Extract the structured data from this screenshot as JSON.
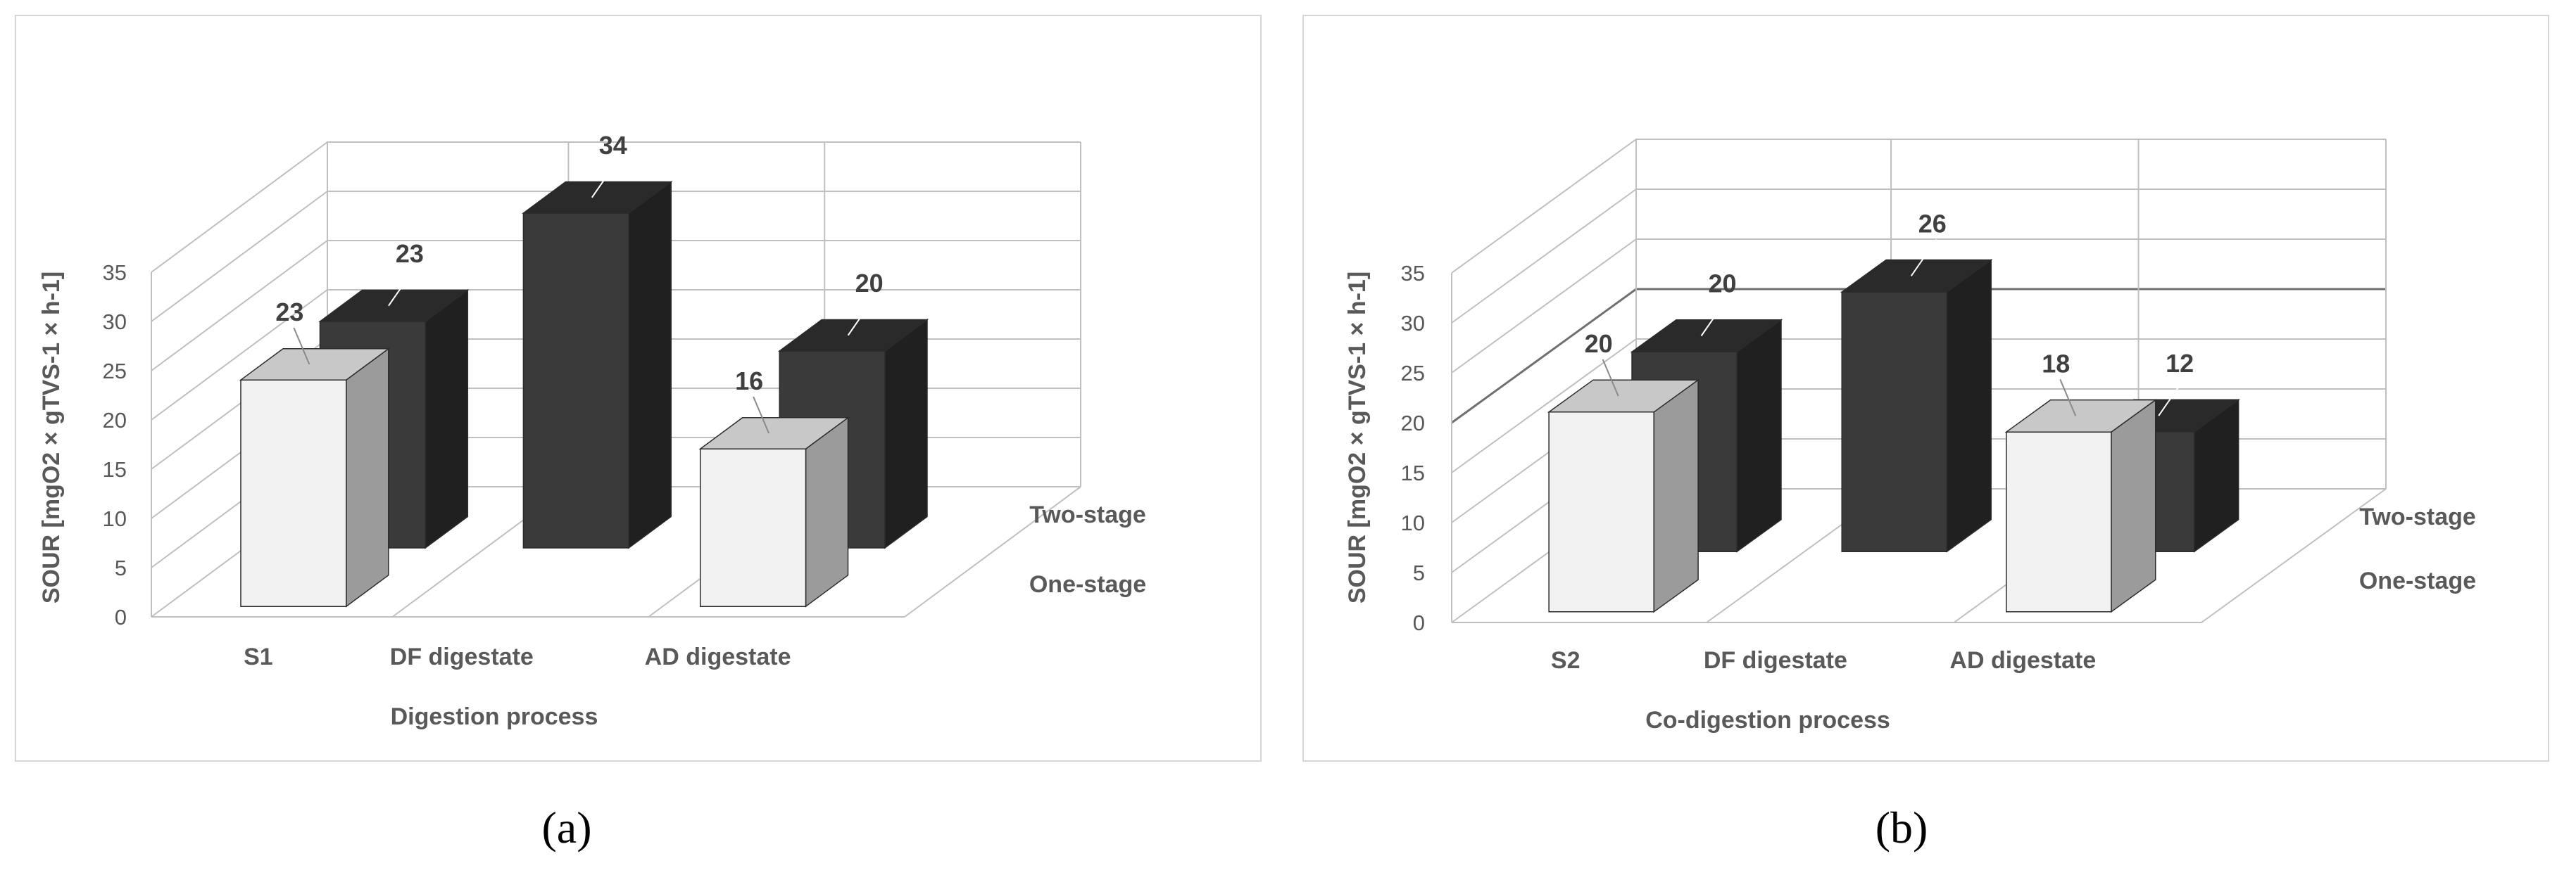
{
  "panels": [
    {
      "id": "a",
      "caption": "(a)",
      "chart_data": {
        "type": "bar",
        "subtype": "3d-clustered",
        "categories": [
          "S1",
          "DF digestate",
          "AD digestate"
        ],
        "series": [
          {
            "name": "One-stage",
            "values": [
              23,
              null,
              16
            ],
            "color": "#f2f2f2"
          },
          {
            "name": "Two-stage",
            "values": [
              23,
              34,
              20
            ],
            "color": "#3a3a3a"
          }
        ],
        "xlabel": "Digestion process",
        "ylabel": "SOUR [mgO2 × gTVS-1 × h-1]",
        "ylim": [
          0,
          35
        ],
        "yticks": [
          "0",
          "5",
          "10",
          "15",
          "20",
          "25",
          "30",
          "35"
        ],
        "grid": true,
        "highlight_gridline": null
      }
    },
    {
      "id": "b",
      "caption": "(b)",
      "chart_data": {
        "type": "bar",
        "subtype": "3d-clustered",
        "categories": [
          "S2",
          "DF digestate",
          "AD digestate"
        ],
        "series": [
          {
            "name": "One-stage",
            "values": [
              20,
              null,
              18
            ],
            "color": "#f2f2f2"
          },
          {
            "name": "Two-stage",
            "values": [
              20,
              26,
              12
            ],
            "color": "#3a3a3a"
          }
        ],
        "xlabel": "Co-digestion process",
        "ylabel": "SOUR [mgO2 × gTVS-1 × h-1]",
        "ylim": [
          0,
          35
        ],
        "yticks": [
          "0",
          "5",
          "10",
          "15",
          "20",
          "25",
          "30",
          "35"
        ],
        "grid": true,
        "highlight_gridline": 20
      }
    }
  ]
}
